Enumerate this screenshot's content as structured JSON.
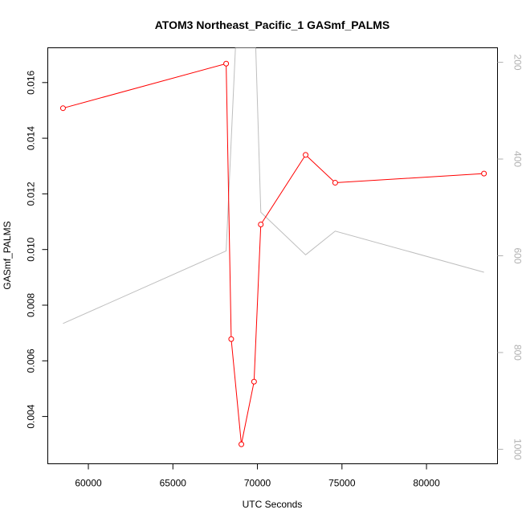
{
  "chart_data": {
    "type": "line",
    "title": "ATOM3 Northeast_Pacific_1 GASmf_PALMS",
    "xlabel": "UTC Seconds",
    "ylabel": "GASmf_PALMS",
    "y2label": "",
    "xlim": [
      57600,
      84200
    ],
    "ylim": [
      0.0023,
      0.01725
    ],
    "y2lim": [
      1030,
      170
    ],
    "y2_reversed": true,
    "x_ticks": [
      60000,
      65000,
      70000,
      75000,
      80000
    ],
    "x_tick_labels": [
      "60000",
      "65000",
      "70000",
      "75000",
      "80000"
    ],
    "y_ticks": [
      0.004,
      0.006,
      0.008,
      0.01,
      0.012,
      0.014,
      0.016
    ],
    "y_tick_labels": [
      "0.004",
      "0.006",
      "0.008",
      "0.010",
      "0.012",
      "0.014",
      "0.016"
    ],
    "y2_ticks": [
      200,
      400,
      600,
      800,
      1000
    ],
    "y2_tick_labels": [
      "200",
      "400",
      "600",
      "800",
      "1000"
    ],
    "grid": false,
    "legend": "none",
    "series": [
      {
        "axis": "left",
        "color": "#ff0000",
        "marker": "open-circle",
        "points": [
          [
            58500,
            0.01508
          ],
          [
            68150,
            0.01668
          ],
          [
            68450,
            0.00678
          ],
          [
            69050,
            0.003
          ],
          [
            69800,
            0.00525
          ],
          [
            70200,
            0.0109
          ],
          [
            72850,
            0.0134
          ],
          [
            74600,
            0.0124
          ],
          [
            83400,
            0.01273
          ]
        ]
      },
      {
        "axis": "right",
        "color": "#bebebe",
        "marker": "none",
        "points": [
          [
            58500,
            740
          ],
          [
            68150,
            590
          ],
          [
            68700,
            170
          ],
          [
            69400,
            170
          ],
          [
            69900,
            170
          ],
          [
            70200,
            510
          ],
          [
            72850,
            598
          ],
          [
            74600,
            549
          ],
          [
            83400,
            634
          ]
        ]
      }
    ]
  }
}
